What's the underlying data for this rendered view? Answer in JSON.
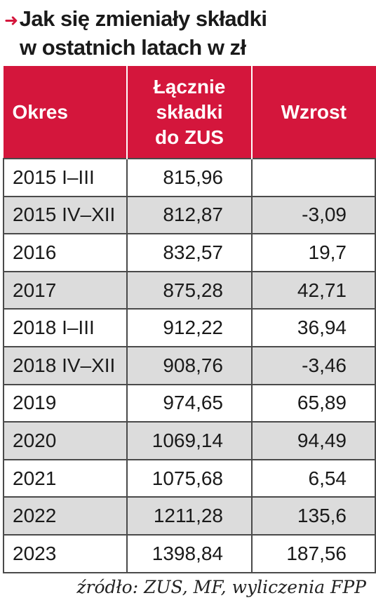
{
  "title": {
    "line1": "Jak się zmieniały składki",
    "line2": "w ostatnich latach w zł"
  },
  "colors": {
    "accent": "#d4163c",
    "stripe": "#dcdcdc"
  },
  "chart_data": {
    "type": "table",
    "title": "Jak się zmieniały składki w ostatnich latach w zł",
    "columns": [
      "Okres",
      "Łącznie składki do ZUS",
      "Wzrost"
    ],
    "rows": [
      [
        "2015 I–III",
        "815,96",
        ""
      ],
      [
        "2015 IV–XII",
        "812,87",
        "-3,09"
      ],
      [
        "2016",
        "832,57",
        "19,7"
      ],
      [
        "2017",
        "875,28",
        "42,71"
      ],
      [
        "2018 I–III",
        "912,22",
        "36,94"
      ],
      [
        "2018 IV–XII",
        "908,76",
        "-3,46"
      ],
      [
        "2019",
        "974,65",
        "65,89"
      ],
      [
        "2020",
        "1069,14",
        "94,49"
      ],
      [
        "2021",
        "1075,68",
        "6,54"
      ],
      [
        "2022",
        "1211,28",
        "135,6"
      ],
      [
        "2023",
        "1398,84",
        "187,56"
      ]
    ]
  },
  "source": "źródło: ZUS, MF, wyliczenia FPP"
}
